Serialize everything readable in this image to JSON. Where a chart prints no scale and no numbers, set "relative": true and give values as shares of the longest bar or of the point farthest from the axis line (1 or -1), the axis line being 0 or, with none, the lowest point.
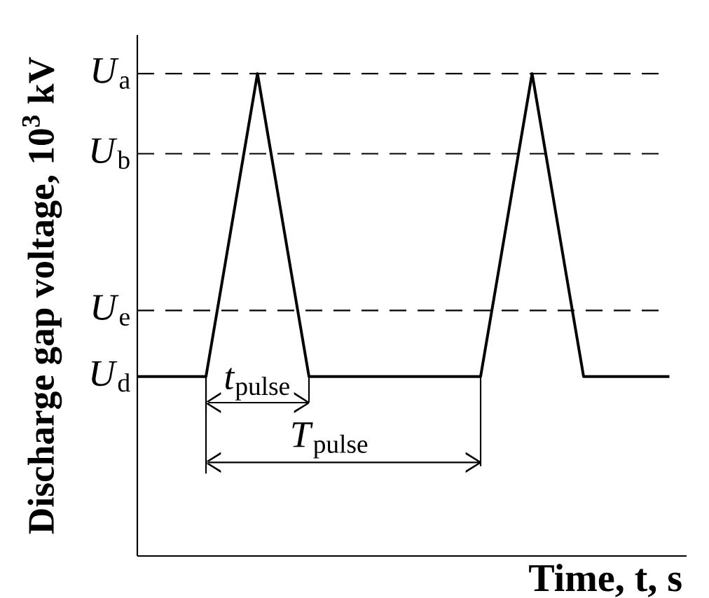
{
  "chart_data": {
    "type": "line",
    "relative": true,
    "xlabel": "Time, t, s",
    "ylabel": "Discharge gap voltage, 10$^{3}$ kV",
    "categories": [
      null,
      null,
      null,
      null,
      null,
      null,
      null,
      null,
      null,
      null,
      null,
      null,
      null,
      null,
      null,
      null,
      null,
      null,
      null,
      null,
      null,
      null,
      null,
      null,
      null,
      null,
      null,
      null,
      null,
      null,
      null,
      null,
      null
    ],
    "series": [
      {
        "color": "#000000",
        "values": [
          0.372,
          0.372,
          0.372,
          0.372,
          0.372,
          0.581,
          0.791,
          1,
          0.791,
          0.581,
          0.372,
          0.372,
          0.372,
          0.372,
          0.372,
          0.372,
          0.372,
          0.372,
          0.372,
          0.372,
          0.372,
          0.581,
          0.791,
          1,
          0.791,
          0.581,
          0.372,
          0.372,
          0.372,
          0.372,
          0.372,
          0.372,
          null
        ]
      }
    ],
    "ref_lines": [
      {
        "axis": "y",
        "value": 1,
        "label": "*U*$_{a}$",
        "line_style": "dashed"
      },
      {
        "axis": "y",
        "value": 0.834,
        "label": "*U*$_{b}$",
        "line_style": "dashed"
      },
      {
        "axis": "y",
        "value": 0.509,
        "label": "*U*$_{e}$",
        "line_style": "dashed"
      }
    ],
    "annotations": [
      "*U*$_{d}$",
      "*t*$_{pulse}$",
      "*T*$_{pulse}$"
    ],
    "marker": "none",
    "line_style": "solid"
  }
}
